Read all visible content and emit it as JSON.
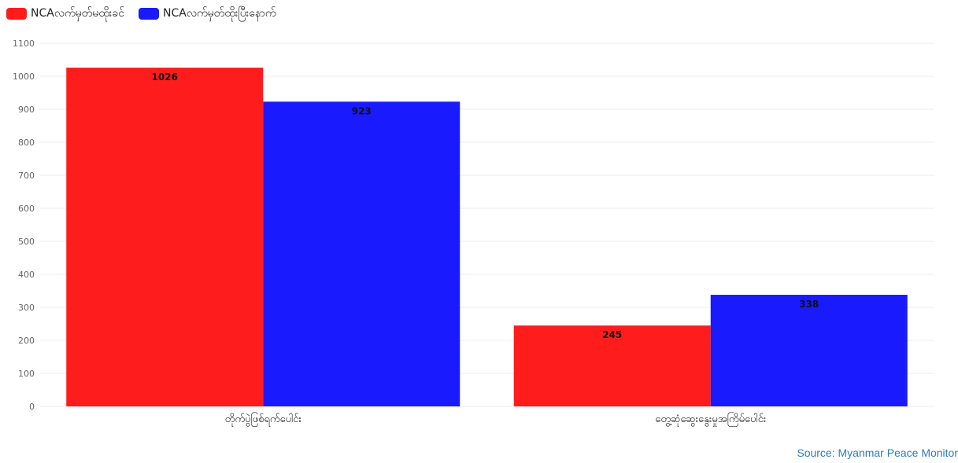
{
  "chart_data": {
    "type": "bar",
    "categories": [
      "တိုက်ပွဲဖြစ်ရက်ပေါင်း",
      "တွေ့ဆုံဆွေးနွေးမှုအကြိမ်ပေါင်း"
    ],
    "series": [
      {
        "name": "NCAလက်မှတ်မထိုးခင်",
        "color": "#ff1c1c",
        "values": [
          1026,
          245
        ]
      },
      {
        "name": "NCAလက်မှတ်ထိုးပြီးနောက်",
        "color": "#1a1aff",
        "values": [
          923,
          338
        ]
      }
    ],
    "yticks": [
      0,
      100,
      200,
      300,
      400,
      500,
      600,
      700,
      800,
      900,
      1000,
      1100
    ],
    "ylim": [
      0,
      1100
    ],
    "grid": true,
    "legend_position": "top-left",
    "title": "",
    "xlabel": "",
    "ylabel": ""
  },
  "source_text": "Source: Myanmar Peace Monitor"
}
